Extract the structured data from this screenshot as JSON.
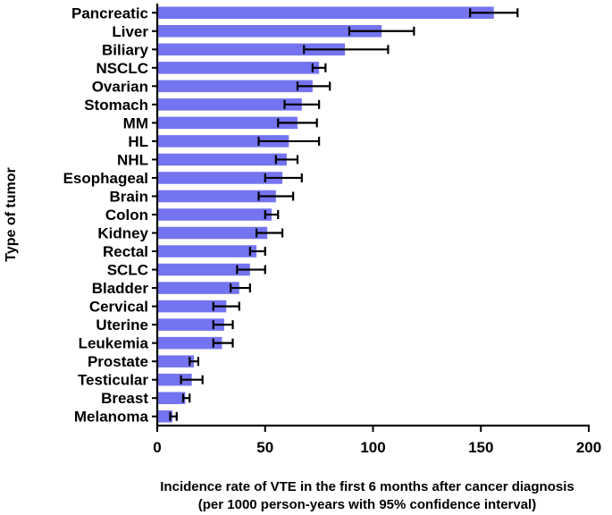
{
  "chart_data": {
    "type": "bar",
    "orientation": "horizontal",
    "categories": [
      "Pancreatic",
      "Liver",
      "Biliary",
      "NSCLC",
      "Ovarian",
      "Stomach",
      "MM",
      "HL",
      "NHL",
      "Esophageal",
      "Brain",
      "Colon",
      "Kidney",
      "Rectal",
      "SCLC",
      "Bladder",
      "Cervical",
      "Uterine",
      "Leukemia",
      "Prostate",
      "Testicular",
      "Breast",
      "Melanoma"
    ],
    "values": [
      156,
      104,
      87,
      75,
      72,
      67,
      65,
      61,
      60,
      58,
      55,
      53,
      51,
      46,
      43,
      38,
      32,
      31,
      30,
      17,
      16,
      13,
      7
    ],
    "ci_lower": [
      145,
      89,
      68,
      72,
      65,
      59,
      56,
      47,
      55,
      50,
      47,
      50,
      46,
      43,
      37,
      34,
      26,
      26,
      26,
      15,
      11,
      12,
      6
    ],
    "ci_upper": [
      167,
      119,
      107,
      78,
      80,
      75,
      74,
      75,
      65,
      67,
      63,
      56,
      58,
      50,
      50,
      43,
      38,
      35,
      35,
      19,
      21,
      15,
      9
    ],
    "ylabel": "Type of tumor",
    "xlabel_line1": "Incidence rate of VTE in the first 6 months after cancer diagnosis",
    "xlabel_line2": "(per 1000 person-years with 95% confidence interval)",
    "xlim": [
      0,
      200
    ],
    "xticks": [
      0,
      50,
      100,
      150,
      200
    ],
    "bar_color": "#7474f0",
    "grid": false
  }
}
